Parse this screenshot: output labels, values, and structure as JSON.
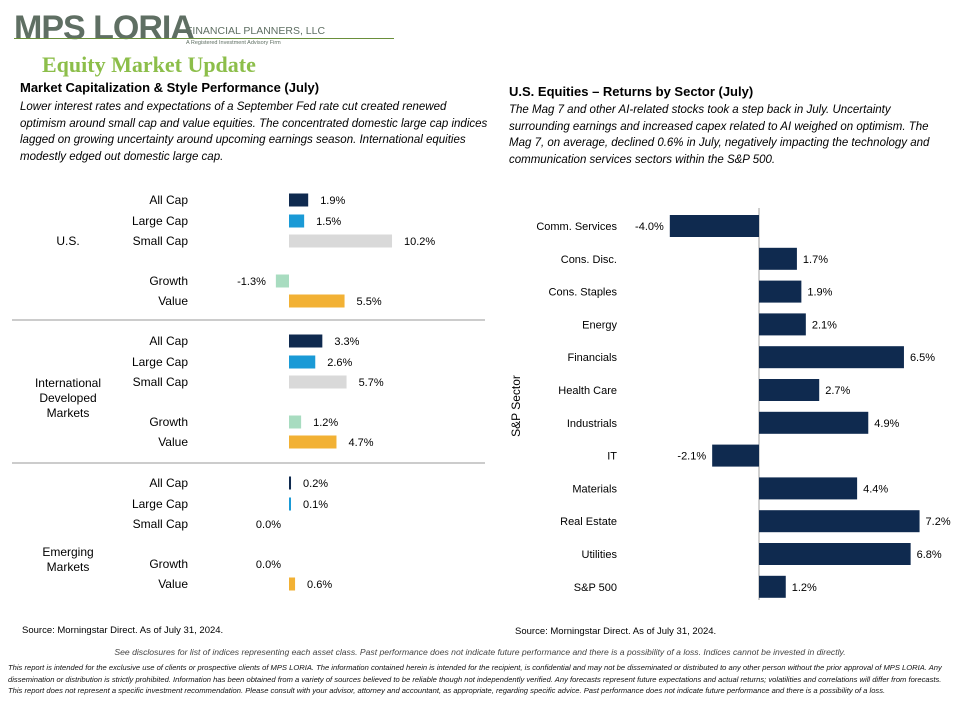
{
  "brand": {
    "name": "MPS LORIA",
    "tagline": "FINANCIAL PLANNERS, LLC",
    "subtagline": "A Registered Investment Advisory Firm"
  },
  "page_title": "Equity Market Update",
  "colors": {
    "brand_green": "#8cbe4a",
    "brand_dark": "#5f6f63",
    "navy": "#0f2a4f",
    "blue": "#1a9ad6",
    "gray": "#d9d9d9",
    "green": "#a8dcc0",
    "gold": "#f2b134"
  },
  "left": {
    "title": "Market Capitalization & Style Performance (July)",
    "body": "Lower interest rates and expectations of a September Fed rate cut created renewed optimism around small cap and value equities. The concentrated domestic large cap indices lagged on growing uncertainty around upcoming earnings season. International equities modestly edged out domestic large cap.",
    "source": "Source: Morningstar Direct. As of July 31, 2024."
  },
  "right": {
    "title": "U.S. Equities – Returns by Sector (July)",
    "body": "The Mag 7 and other AI-related stocks took a step back in July. Uncertainty surrounding earnings and increased capex related to AI weighed on optimism. The Mag 7, on average, declined 0.6% in July, negatively impacting the technology and communication services sectors within the S&P 500.",
    "source": "Source: Morningstar Direct. As of July 31, 2024."
  },
  "disclosure_note": "See disclosures for list of indices representing each asset class. Past performance does not indicate future performance and there is a possibility of a loss. Indices cannot be invested in directly.",
  "disclaimer": "This report is intended for the exclusive use of clients or prospective clients of MPS LORIA. The information contained herein is intended for the recipient, is confidential and may not be disseminated or distributed to any other person without the prior approval of MPS LORIA. Any dissemination or distribution is strictly prohibited. Information has been obtained from a variety of sources believed to be reliable though not independently verified. Any forecasts represent future expectations and actual returns; volatilities and correlations will differ from forecasts. This report does not represent a specific investment recommendation. Please consult with your advisor, attorney and accountant, as appropriate, regarding specific advice. Past performance does not indicate future performance and there is a possibility of a loss.",
  "chart_data": [
    {
      "type": "bar",
      "orientation": "horizontal",
      "unit": "%",
      "groups": [
        {
          "name": "U.S.",
          "rows": [
            {
              "label": "All Cap",
              "value": 1.9,
              "value_label": "1.9%",
              "color": "#0f2a4f"
            },
            {
              "label": "Large Cap",
              "value": 1.5,
              "value_label": "1.5%",
              "color": "#1a9ad6"
            },
            {
              "label": "Small Cap",
              "value": 10.2,
              "value_label": "10.2%",
              "color": "#d9d9d9"
            },
            {
              "label": "Growth",
              "value": -1.3,
              "value_label": "-1.3%",
              "color": "#a8dcc0"
            },
            {
              "label": "Value",
              "value": 5.5,
              "value_label": "5.5%",
              "color": "#f2b134"
            }
          ]
        },
        {
          "name": "International Developed Markets",
          "rows": [
            {
              "label": "All Cap",
              "value": 3.3,
              "value_label": "3.3%",
              "color": "#0f2a4f"
            },
            {
              "label": "Large Cap",
              "value": 2.6,
              "value_label": "2.6%",
              "color": "#1a9ad6"
            },
            {
              "label": "Small Cap",
              "value": 5.7,
              "value_label": "5.7%",
              "color": "#d9d9d9"
            },
            {
              "label": "Growth",
              "value": 1.2,
              "value_label": "1.2%",
              "color": "#a8dcc0"
            },
            {
              "label": "Value",
              "value": 4.7,
              "value_label": "4.7%",
              "color": "#f2b134"
            }
          ]
        },
        {
          "name": "Emerging Markets",
          "rows": [
            {
              "label": "All Cap",
              "value": 0.2,
              "value_label": "0.2%",
              "color": "#0f2a4f"
            },
            {
              "label": "Large Cap",
              "value": 0.1,
              "value_label": "0.1%",
              "color": "#1a9ad6"
            },
            {
              "label": "Small Cap",
              "value": 0.0,
              "value_label": "0.0%",
              "color": "#d9d9d9"
            },
            {
              "label": "Growth",
              "value": 0.0,
              "value_label": "0.0%",
              "color": "#a8dcc0"
            },
            {
              "label": "Value",
              "value": 0.6,
              "value_label": "0.6%",
              "color": "#f2b134"
            }
          ]
        }
      ],
      "legend": "none",
      "grid": false
    },
    {
      "type": "bar",
      "orientation": "horizontal",
      "unit": "%",
      "ylabel": "S&P Sector",
      "color": "#0f2a4f",
      "categories": [
        "Comm. Services",
        "Cons. Disc.",
        "Cons. Staples",
        "Energy",
        "Financials",
        "Health Care",
        "Industrials",
        "IT",
        "Materials",
        "Real Estate",
        "Utilities",
        "S&P 500"
      ],
      "values": [
        -4.0,
        1.7,
        1.9,
        2.1,
        6.5,
        2.7,
        4.9,
        -2.1,
        4.4,
        7.2,
        6.8,
        1.2
      ],
      "value_labels": [
        "-4.0%",
        "1.7%",
        "1.9%",
        "2.1%",
        "6.5%",
        "2.7%",
        "4.9%",
        "-2.1%",
        "4.4%",
        "7.2%",
        "6.8%",
        "1.2%"
      ],
      "legend": "none",
      "grid": false
    }
  ]
}
